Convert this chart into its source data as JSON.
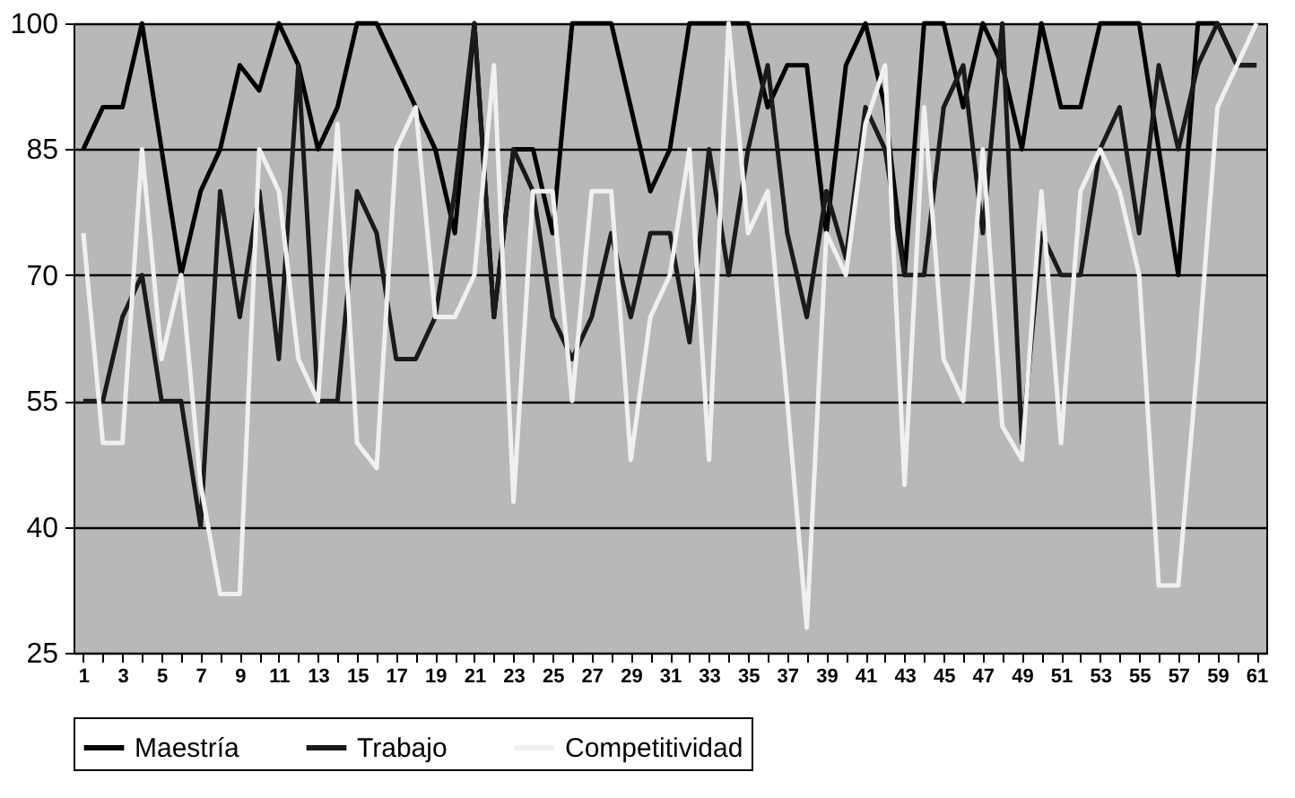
{
  "chart_data": {
    "type": "line",
    "x": [
      1,
      2,
      3,
      4,
      5,
      6,
      7,
      8,
      9,
      10,
      11,
      12,
      13,
      14,
      15,
      16,
      17,
      18,
      19,
      20,
      21,
      22,
      23,
      24,
      25,
      26,
      27,
      28,
      29,
      30,
      31,
      32,
      33,
      34,
      35,
      36,
      37,
      38,
      39,
      40,
      41,
      42,
      43,
      44,
      45,
      46,
      47,
      48,
      49,
      50,
      51,
      52,
      53,
      54,
      55,
      56,
      57,
      58,
      59,
      60,
      61
    ],
    "xlim": [
      0.5,
      61.5
    ],
    "xticks": [
      1,
      {
        "value": 2,
        "label": null
      },
      3,
      {
        "value": 4,
        "label": null
      },
      5,
      {
        "value": 6,
        "label": null
      },
      7,
      {
        "value": 8,
        "label": null
      },
      9,
      {
        "value": 10,
        "label": null
      },
      11,
      {
        "value": 12,
        "label": null
      },
      13,
      {
        "value": 14,
        "label": null
      },
      15,
      {
        "value": 16,
        "label": null
      },
      17,
      {
        "value": 18,
        "label": null
      },
      19,
      {
        "value": 20,
        "label": null
      },
      21,
      {
        "value": 22,
        "label": null
      },
      23,
      {
        "value": 24,
        "label": null
      },
      25,
      {
        "value": 26,
        "label": null
      },
      27,
      {
        "value": 28,
        "label": null
      },
      29,
      {
        "value": 30,
        "label": null
      },
      31,
      {
        "value": 32,
        "label": null
      },
      33,
      {
        "value": 34,
        "label": null
      },
      35,
      {
        "value": 36,
        "label": null
      },
      37,
      {
        "value": 38,
        "label": null
      },
      39,
      {
        "value": 40,
        "label": null
      },
      41,
      {
        "value": 42,
        "label": null
      },
      43,
      {
        "value": 44,
        "label": null
      },
      45,
      {
        "value": 46,
        "label": null
      },
      47,
      {
        "value": 48,
        "label": null
      },
      49,
      {
        "value": 50,
        "label": null
      },
      51,
      {
        "value": 52,
        "label": null
      },
      53,
      {
        "value": 54,
        "label": null
      },
      55,
      {
        "value": 56,
        "label": null
      },
      57,
      {
        "value": 58,
        "label": null
      },
      59,
      {
        "value": 60,
        "label": null
      },
      61
    ],
    "ylim": [
      25,
      100
    ],
    "yticks": [
      25,
      40,
      55,
      70,
      85,
      100
    ],
    "grid": "y",
    "legend": "bottom",
    "line_style": "solid",
    "series": [
      {
        "name": "Maestría",
        "color": "#000000",
        "values": [
          85,
          90,
          90,
          100,
          85,
          70,
          80,
          85,
          95,
          92,
          100,
          95,
          85,
          90,
          100,
          100,
          95,
          90,
          85,
          75,
          100,
          65,
          85,
          85,
          75,
          100,
          100,
          100,
          90,
          80,
          85,
          100,
          100,
          100,
          100,
          90,
          95,
          95,
          75,
          95,
          100,
          90,
          70,
          100,
          100,
          90,
          100,
          95,
          85,
          100,
          90,
          90,
          100,
          100,
          100,
          85,
          70,
          100,
          100,
          95,
          95
        ]
      },
      {
        "name": "Trabajo",
        "color": "#1a1a1a",
        "values": [
          55,
          55,
          65,
          70,
          55,
          55,
          40,
          80,
          65,
          80,
          60,
          95,
          55,
          55,
          80,
          75,
          60,
          60,
          65,
          80,
          100,
          65,
          85,
          80,
          65,
          60,
          65,
          75,
          65,
          75,
          75,
          62,
          85,
          70,
          85,
          95,
          75,
          65,
          80,
          72,
          90,
          85,
          70,
          70,
          90,
          95,
          75,
          100,
          50,
          75,
          70,
          70,
          85,
          90,
          75,
          95,
          85,
          95,
          100,
          95,
          95
        ]
      },
      {
        "name": "Competitividad",
        "color": "#f0f0f0",
        "values": [
          75,
          50,
          50,
          85,
          60,
          70,
          45,
          32,
          32,
          85,
          80,
          60,
          55,
          88,
          50,
          47,
          85,
          90,
          65,
          65,
          70,
          95,
          43,
          80,
          80,
          55,
          80,
          80,
          48,
          65,
          70,
          85,
          48,
          100,
          75,
          80,
          55,
          28,
          75,
          70,
          88,
          95,
          45,
          90,
          60,
          55,
          85,
          52,
          48,
          80,
          50,
          80,
          85,
          80,
          70,
          33,
          33,
          60,
          90,
          95,
          100
        ]
      }
    ]
  }
}
